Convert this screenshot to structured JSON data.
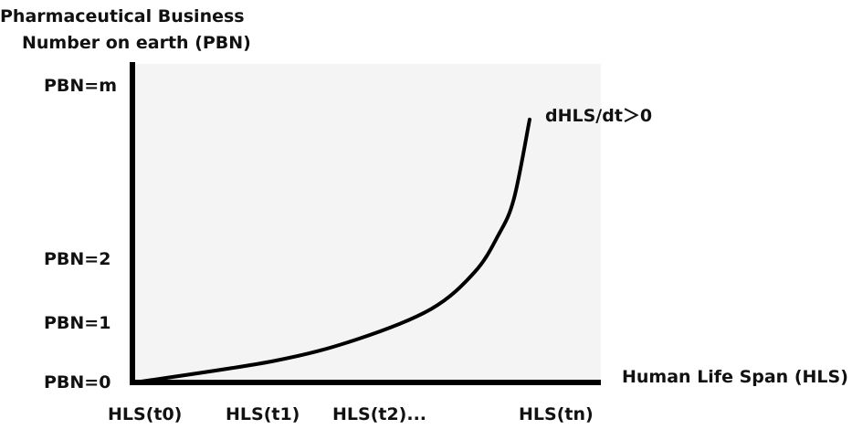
{
  "chart_data": {
    "type": "line",
    "title": "",
    "ylabel_line1": "Pharmaceutical Business",
    "ylabel_line2": "Number on earth (PBN)",
    "xlabel": "Human Life Span (HLS)",
    "y_ticks": [
      "PBN=0",
      "PBN=1",
      "PBN=2",
      "PBN=m"
    ],
    "x_ticks": [
      "HLS(t0)",
      "HLS(t1)",
      "HLS(t2)...",
      "HLS(tn)"
    ],
    "annotation": "dHLS/dt＞0",
    "curve": {
      "description_points": [
        [
          0.0,
          0.0
        ],
        [
          0.35,
          0.35
        ],
        [
          0.56,
          0.7
        ],
        [
          0.75,
          1.2
        ],
        [
          0.86,
          1.8
        ],
        [
          0.92,
          2.4
        ],
        [
          0.96,
          3.0
        ],
        [
          1.0,
          4.3
        ]
      ]
    },
    "colors": {
      "curve": "#000000",
      "plot_bg": "#f4f4f4",
      "axes": "#000000"
    }
  }
}
